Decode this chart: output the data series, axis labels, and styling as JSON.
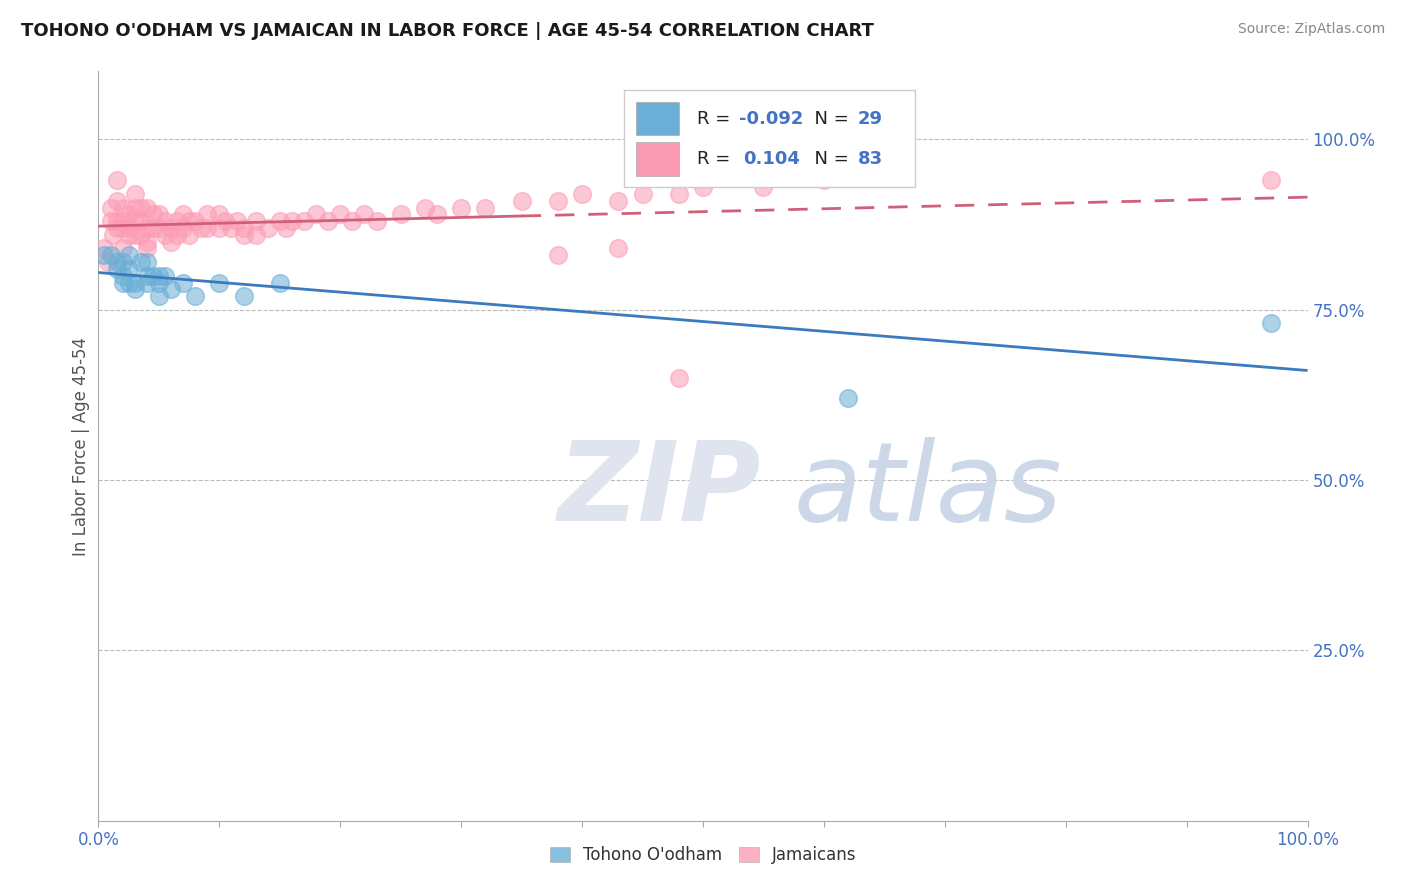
{
  "title": "TOHONO O'ODHAM VS JAMAICAN IN LABOR FORCE | AGE 45-54 CORRELATION CHART",
  "source": "Source: ZipAtlas.com",
  "ylabel": "In Labor Force | Age 45-54",
  "xlim": [
    0.0,
    1.0
  ],
  "ylim": [
    0.0,
    1.1
  ],
  "blue_color": "#6baed6",
  "blue_edge_color": "#4292c6",
  "pink_color": "#fc9cb4",
  "pink_edge_color": "#e05080",
  "blue_line_color": "#3a7abf",
  "pink_line_color": "#d0607a",
  "blue_R": -0.092,
  "blue_N": 29,
  "pink_R": 0.104,
  "pink_N": 83,
  "legend_label_blue": "Tohono O'odham",
  "legend_label_pink": "Jamaicans",
  "r_n_color": "#4472c4",
  "tick_label_color": "#4472c4",
  "blue_scatter_x": [
    0.005,
    0.01,
    0.015,
    0.015,
    0.02,
    0.02,
    0.02,
    0.025,
    0.025,
    0.025,
    0.03,
    0.03,
    0.035,
    0.04,
    0.04,
    0.04,
    0.045,
    0.05,
    0.05,
    0.05,
    0.055,
    0.06,
    0.07,
    0.08,
    0.1,
    0.12,
    0.15,
    0.62,
    0.97
  ],
  "blue_scatter_y": [
    0.83,
    0.83,
    0.82,
    0.81,
    0.82,
    0.8,
    0.79,
    0.83,
    0.81,
    0.79,
    0.79,
    0.78,
    0.82,
    0.8,
    0.82,
    0.79,
    0.8,
    0.8,
    0.79,
    0.77,
    0.8,
    0.78,
    0.79,
    0.77,
    0.79,
    0.77,
    0.79,
    0.62,
    0.73
  ],
  "pink_scatter_x": [
    0.005,
    0.008,
    0.01,
    0.01,
    0.012,
    0.015,
    0.015,
    0.015,
    0.015,
    0.02,
    0.02,
    0.02,
    0.02,
    0.025,
    0.025,
    0.025,
    0.03,
    0.03,
    0.03,
    0.03,
    0.035,
    0.035,
    0.035,
    0.04,
    0.04,
    0.04,
    0.04,
    0.045,
    0.045,
    0.05,
    0.05,
    0.055,
    0.055,
    0.06,
    0.06,
    0.065,
    0.065,
    0.07,
    0.07,
    0.075,
    0.075,
    0.08,
    0.085,
    0.09,
    0.09,
    0.1,
    0.1,
    0.105,
    0.11,
    0.115,
    0.12,
    0.12,
    0.13,
    0.13,
    0.14,
    0.15,
    0.155,
    0.16,
    0.17,
    0.18,
    0.19,
    0.2,
    0.21,
    0.22,
    0.23,
    0.25,
    0.27,
    0.28,
    0.3,
    0.32,
    0.35,
    0.38,
    0.4,
    0.43,
    0.45,
    0.48,
    0.5,
    0.55,
    0.6,
    0.38,
    0.43,
    0.48,
    0.97
  ],
  "pink_scatter_y": [
    0.84,
    0.82,
    0.88,
    0.9,
    0.86,
    0.88,
    0.87,
    0.91,
    0.94,
    0.9,
    0.88,
    0.87,
    0.84,
    0.89,
    0.87,
    0.86,
    0.92,
    0.9,
    0.88,
    0.86,
    0.9,
    0.88,
    0.86,
    0.9,
    0.87,
    0.85,
    0.84,
    0.89,
    0.87,
    0.89,
    0.87,
    0.88,
    0.86,
    0.87,
    0.85,
    0.88,
    0.86,
    0.89,
    0.87,
    0.88,
    0.86,
    0.88,
    0.87,
    0.89,
    0.87,
    0.89,
    0.87,
    0.88,
    0.87,
    0.88,
    0.87,
    0.86,
    0.88,
    0.86,
    0.87,
    0.88,
    0.87,
    0.88,
    0.88,
    0.89,
    0.88,
    0.89,
    0.88,
    0.89,
    0.88,
    0.89,
    0.9,
    0.89,
    0.9,
    0.9,
    0.91,
    0.91,
    0.92,
    0.91,
    0.92,
    0.92,
    0.93,
    0.93,
    0.94,
    0.83,
    0.84,
    0.65,
    0.94
  ]
}
